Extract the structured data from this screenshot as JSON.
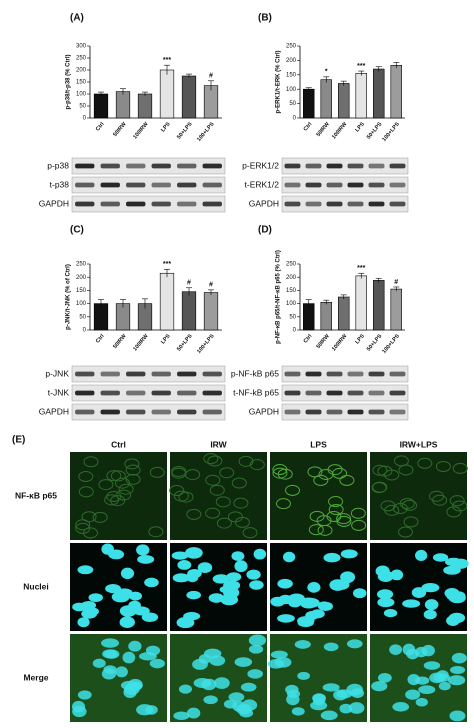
{
  "chart_data": [
    {
      "type": "bar",
      "label": "(A)",
      "y_label": "p-p38/t-p38 (% Ctrl)",
      "categories": [
        "Ctrl",
        "50IRW",
        "100IRW",
        "LPS",
        "50+LPS",
        "100+LPS"
      ],
      "values": [
        100,
        110,
        100,
        200,
        175,
        135
      ],
      "errors": [
        8,
        12,
        8,
        20,
        8,
        20
      ],
      "annotations": [
        null,
        null,
        null,
        "***",
        null,
        "#"
      ],
      "colors": [
        "#111111",
        "#8a8a8a",
        "#6f6f6f",
        "#e4e4e4",
        "#555555",
        "#9c9c9c"
      ],
      "ylim": [
        0,
        300
      ],
      "yticks": [
        0,
        50,
        100,
        150,
        200,
        250,
        300
      ]
    },
    {
      "type": "bar",
      "label": "(B)",
      "y_label": "p-ERK1/t-ERK (% Ctrl)",
      "categories": [
        "Ctrl",
        "50IRW",
        "100IRW",
        "LPS",
        "50+LPS",
        "100+LPS"
      ],
      "values": [
        100,
        133,
        120,
        155,
        170,
        183
      ],
      "errors": [
        5,
        10,
        8,
        8,
        8,
        10
      ],
      "annotations": [
        null,
        "*",
        null,
        "***",
        null,
        null
      ],
      "colors": [
        "#111111",
        "#8a8a8a",
        "#6f6f6f",
        "#e4e4e4",
        "#555555",
        "#9c9c9c"
      ],
      "ylim": [
        0,
        250
      ],
      "yticks": [
        0,
        50,
        100,
        150,
        200,
        250
      ]
    },
    {
      "type": "bar",
      "label": "(C)",
      "y_label": "p-JNK/t-JNK (% of Ctrl)",
      "categories": [
        "Ctrl",
        "50IRW",
        "100IRW",
        "LPS",
        "50+LPS",
        "100+LPS"
      ],
      "values": [
        100,
        100,
        100,
        215,
        145,
        142
      ],
      "errors": [
        15,
        15,
        18,
        15,
        15,
        10
      ],
      "annotations": [
        null,
        null,
        null,
        "***",
        "#",
        "#"
      ],
      "colors": [
        "#111111",
        "#8a8a8a",
        "#6f6f6f",
        "#e4e4e4",
        "#555555",
        "#9c9c9c"
      ],
      "ylim": [
        0,
        250
      ],
      "yticks": [
        0,
        50,
        100,
        150,
        200,
        250
      ]
    },
    {
      "type": "bar",
      "label": "(D)",
      "y_label": "p-NF-κB p65/t-NF-κB p65 (% Ctrl)",
      "categories": [
        "Ctrl",
        "50IRW",
        "100IRW",
        "LPS",
        "50+LPS",
        "100+LPS"
      ],
      "values": [
        100,
        105,
        125,
        205,
        188,
        155
      ],
      "errors": [
        15,
        8,
        8,
        10,
        8,
        8
      ],
      "annotations": [
        null,
        null,
        null,
        "***",
        null,
        "#"
      ],
      "colors": [
        "#111111",
        "#8a8a8a",
        "#6f6f6f",
        "#e4e4e4",
        "#555555",
        "#9c9c9c"
      ],
      "ylim": [
        0,
        250
      ],
      "yticks": [
        0,
        50,
        100,
        150,
        200,
        250
      ]
    }
  ],
  "blots": [
    {
      "labels": [
        "p-p38",
        "t-p38",
        "GAPDH"
      ]
    },
    {
      "labels": [
        "p-ERK1/2",
        "t-ERK1/2",
        "GAPDH"
      ]
    },
    {
      "labels": [
        "p-JNK",
        "t-JNK",
        "GAPDH"
      ]
    },
    {
      "labels": [
        "p-NF-kB p65",
        "t-NF-kB p65",
        "GAPDH"
      ]
    }
  ],
  "panel_e": {
    "label": "(E)",
    "columns": [
      "Ctrl",
      "IRW",
      "LPS",
      "IRW+LPS"
    ],
    "rows": [
      "NF-κB p65",
      "Nuclei",
      "Merge"
    ]
  }
}
